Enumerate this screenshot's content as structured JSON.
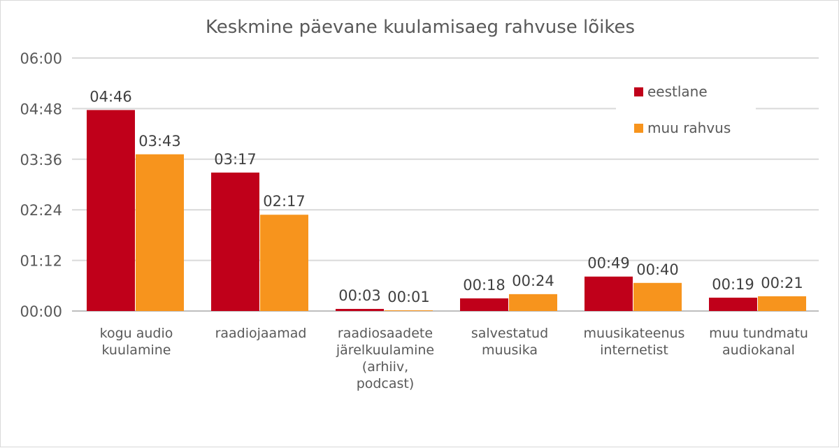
{
  "chart_data": {
    "type": "bar",
    "title": "Keskmine päevane kuulamisaeg rahvuse lõikes",
    "xlabel": "",
    "ylabel": "",
    "y_unit": "minutes",
    "ylim": [
      0,
      360
    ],
    "yticks": [
      {
        "value": 0,
        "label": "00:00"
      },
      {
        "value": 72,
        "label": "01:12"
      },
      {
        "value": 144,
        "label": "02:24"
      },
      {
        "value": 216,
        "label": "03:36"
      },
      {
        "value": 288,
        "label": "04:48"
      },
      {
        "value": 360,
        "label": "06:00"
      }
    ],
    "categories": [
      [
        "kogu audio",
        "kuulamine"
      ],
      [
        "raadiojaamad"
      ],
      [
        "raadiosaadete",
        "järelkuulamine",
        "(arhiiv,",
        "podcast)"
      ],
      [
        "salvestatud",
        "muusika"
      ],
      [
        "muusikateenus",
        "internetist"
      ],
      [
        "muu tundmatu",
        "audiokanal"
      ]
    ],
    "series": [
      {
        "name": "eestlane",
        "color": "#c0001a",
        "values": [
          286,
          197,
          3,
          18,
          49,
          19
        ],
        "labels": [
          "04:46",
          "03:17",
          "00:03",
          "00:18",
          "00:49",
          "00:19"
        ]
      },
      {
        "name": "muu rahvus",
        "color": "#f7941d",
        "values": [
          223,
          137,
          1,
          24,
          40,
          21
        ],
        "labels": [
          "03:43",
          "02:17",
          "00:01",
          "00:24",
          "00:40",
          "00:21"
        ]
      }
    ],
    "grid": true,
    "legend_position": "top-right"
  }
}
